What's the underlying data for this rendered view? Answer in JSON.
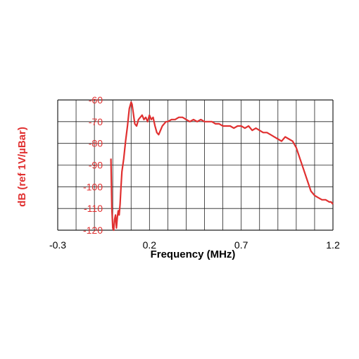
{
  "chart_data": {
    "type": "line",
    "title": "",
    "xlabel": "Frequency (MHz)",
    "ylabel": "dB (ref 1V/µBar)",
    "xlim": [
      -0.3,
      1.2
    ],
    "ylim": [
      -120,
      -60
    ],
    "xticks": [
      -0.3,
      0.2,
      0.7,
      1.2
    ],
    "xtick_labels": [
      "-0.3",
      "0.2",
      "0.7",
      "1.2"
    ],
    "yticks": [
      -60,
      -70,
      -80,
      -90,
      -100,
      -110,
      -120
    ],
    "ytick_labels": [
      "-60",
      "-70",
      "-80",
      "-90",
      "-100",
      "-110",
      "-120"
    ],
    "grid": true,
    "line_color": "#e03030",
    "series": [
      {
        "x": [
          -0.01,
          -0.005,
          0.0,
          0.005,
          0.01,
          0.015,
          0.02,
          0.025,
          0.03,
          0.035,
          0.04,
          0.045,
          0.05,
          0.06,
          0.07,
          0.08,
          0.09,
          0.1,
          0.105,
          0.11,
          0.115,
          0.12,
          0.13,
          0.14,
          0.15,
          0.16,
          0.17,
          0.18,
          0.19,
          0.2,
          0.21,
          0.22,
          0.23,
          0.24,
          0.25,
          0.26,
          0.27,
          0.28,
          0.29,
          0.3,
          0.32,
          0.34,
          0.36,
          0.38,
          0.4,
          0.42,
          0.44,
          0.46,
          0.48,
          0.5,
          0.52,
          0.54,
          0.56,
          0.58,
          0.6,
          0.62,
          0.64,
          0.66,
          0.68,
          0.7,
          0.72,
          0.74,
          0.76,
          0.78,
          0.8,
          0.82,
          0.84,
          0.86,
          0.88,
          0.9,
          0.92,
          0.94,
          0.96,
          0.98,
          1.0,
          1.02,
          1.04,
          1.06,
          1.08,
          1.1,
          1.12,
          1.14,
          1.16,
          1.18,
          1.19,
          1.2
        ],
        "y": [
          -87,
          -110,
          -119,
          -120,
          -115,
          -113,
          -119,
          -114,
          -111,
          -113,
          -108,
          -100,
          -93,
          -87,
          -79,
          -72,
          -64,
          -61,
          -62,
          -65,
          -68,
          -71,
          -72,
          -69,
          -68,
          -67,
          -69,
          -68,
          -70,
          -67,
          -69,
          -68,
          -72,
          -75,
          -76,
          -74,
          -72,
          -71,
          -70,
          -70,
          -69,
          -69,
          -68,
          -68,
          -69,
          -70,
          -69,
          -70,
          -69,
          -70,
          -70,
          -70,
          -71,
          -71,
          -72,
          -72,
          -72,
          -73,
          -72,
          -72,
          -73,
          -72,
          -74,
          -73,
          -74,
          -75,
          -75,
          -76,
          -77,
          -78,
          -79,
          -77,
          -78,
          -79,
          -82,
          -87,
          -92,
          -97,
          -102,
          -104,
          -105,
          -106,
          -106,
          -107,
          -107,
          -108
        ]
      }
    ]
  }
}
